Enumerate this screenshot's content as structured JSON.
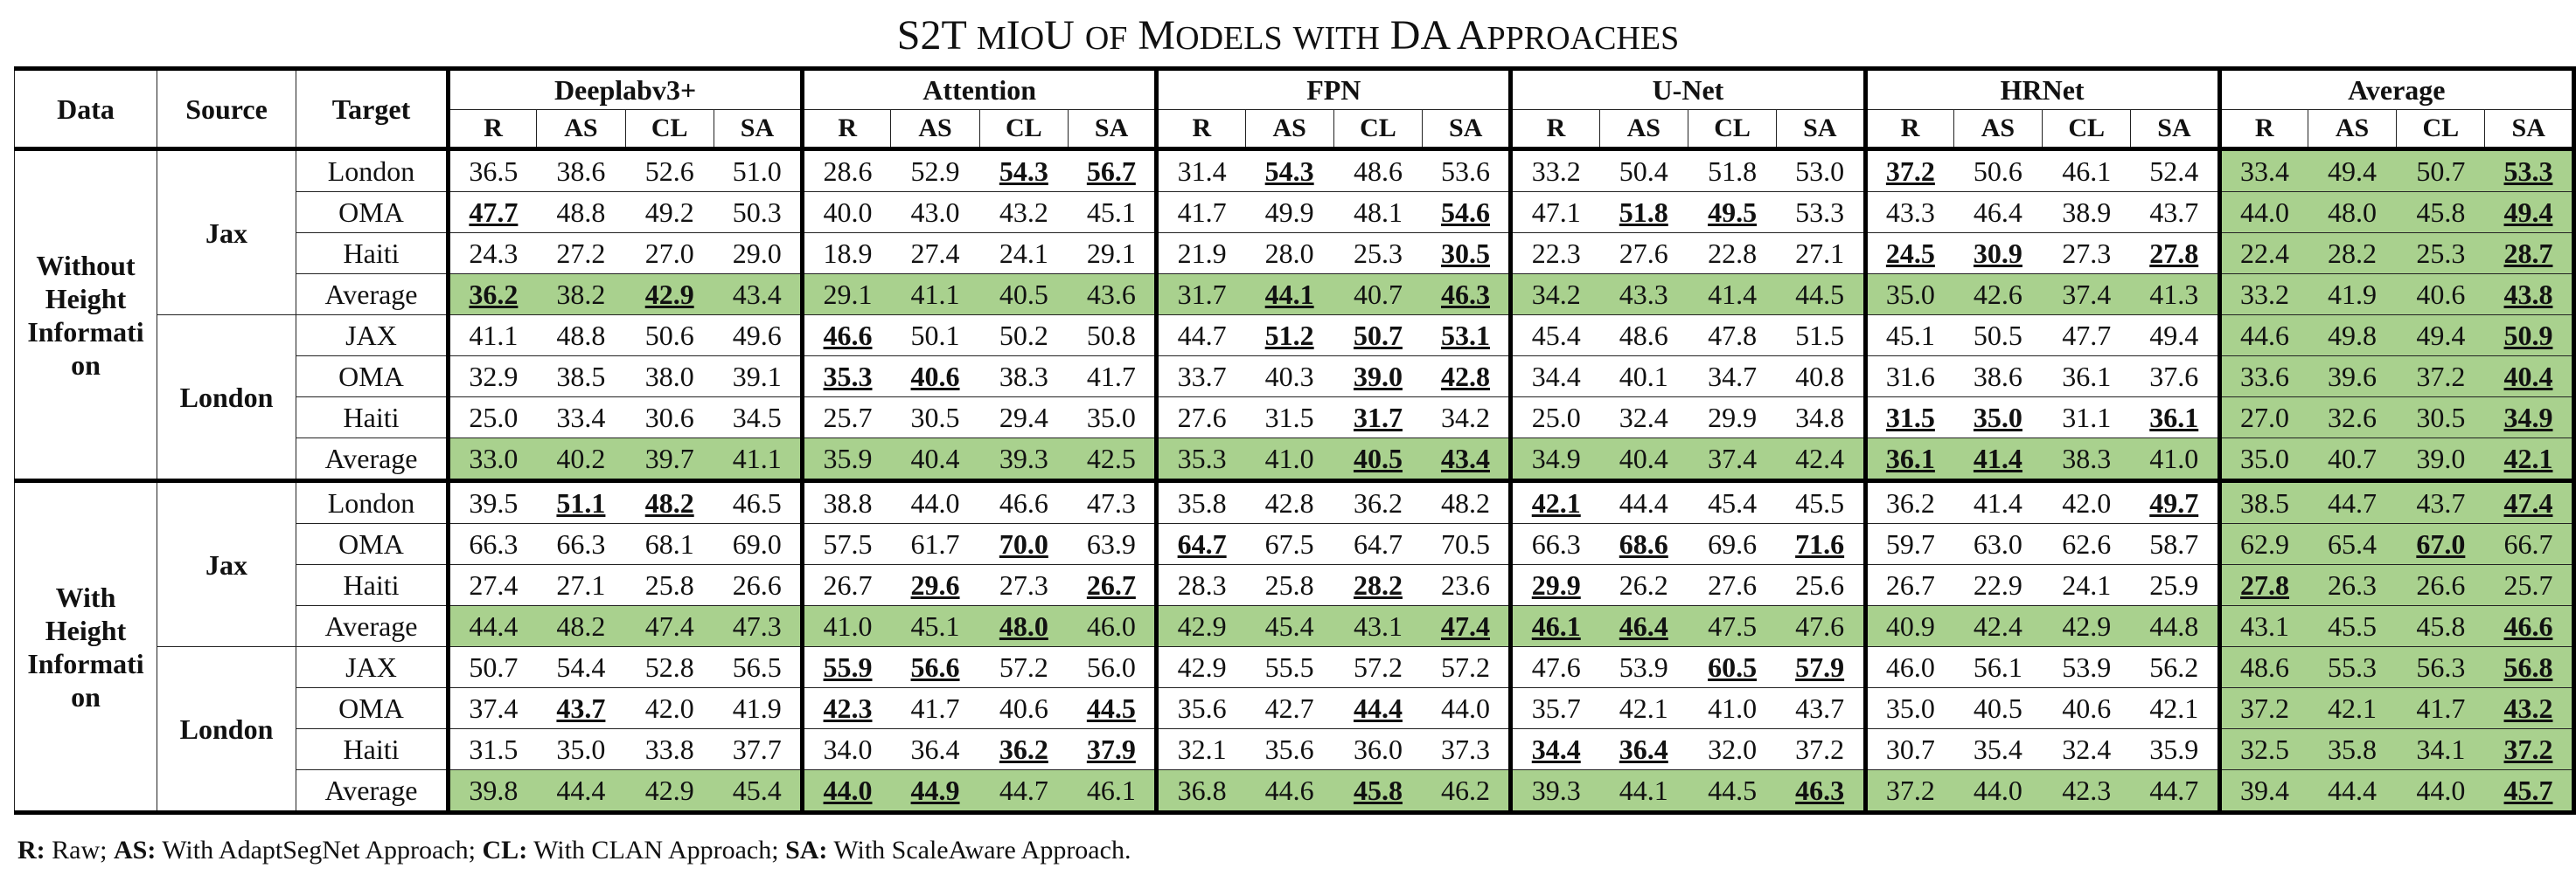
{
  "title": {
    "main_a": "S2T ",
    "sc_a": "M",
    "sc_a_small": "IO",
    "main_b": "U ",
    "rest": "of Models with DA Approaches"
  },
  "title_text": "S2T mIoU of Models with DA Approaches",
  "headers": {
    "data": "Data",
    "source": "Source",
    "target": "Target",
    "groups": [
      "Deeplabv3+",
      "Attention",
      "FPN",
      "U-Net",
      "HRNet",
      "Average"
    ],
    "sub": [
      "R",
      "AS",
      "CL",
      "SA"
    ]
  },
  "sections": [
    {
      "label": "Without Height Informati on",
      "sources": [
        {
          "name": "Jax",
          "rows": [
            {
              "target": "London",
              "vals": [
                "36.5",
                "38.6",
                "52.6",
                "51.0",
                "28.6",
                "52.9",
                "54.3",
                "56.7",
                "31.4",
                "54.3",
                "48.6",
                "53.6",
                "33.2",
                "50.4",
                "51.8",
                "53.0",
                "37.2",
                "50.6",
                "46.1",
                "52.4",
                "33.4",
                "49.4",
                "50.7",
                "53.3"
              ],
              "bold": [
                6,
                7,
                9,
                16,
                23
              ]
            },
            {
              "target": "OMA",
              "vals": [
                "47.7",
                "48.8",
                "49.2",
                "50.3",
                "40.0",
                "43.0",
                "43.2",
                "45.1",
                "41.7",
                "49.9",
                "48.1",
                "54.6",
                "47.1",
                "51.8",
                "49.5",
                "53.3",
                "43.3",
                "46.4",
                "38.9",
                "43.7",
                "44.0",
                "48.0",
                "45.8",
                "49.4"
              ],
              "bold": [
                0,
                11,
                13,
                14,
                23
              ]
            },
            {
              "target": "Haiti",
              "vals": [
                "24.3",
                "27.2",
                "27.0",
                "29.0",
                "18.9",
                "27.4",
                "24.1",
                "29.1",
                "21.9",
                "28.0",
                "25.3",
                "30.5",
                "22.3",
                "27.6",
                "22.8",
                "27.1",
                "24.5",
                "30.9",
                "27.3",
                "27.8",
                "22.4",
                "28.2",
                "25.3",
                "28.7"
              ],
              "bold": [
                11,
                16,
                17,
                19,
                23
              ]
            },
            {
              "target": "Average",
              "avg": true,
              "vals": [
                "36.2",
                "38.2",
                "42.9",
                "43.4",
                "29.1",
                "41.1",
                "40.5",
                "43.6",
                "31.7",
                "44.1",
                "40.7",
                "46.3",
                "34.2",
                "43.3",
                "41.4",
                "44.5",
                "35.0",
                "42.6",
                "37.4",
                "41.3",
                "33.2",
                "41.9",
                "40.6",
                "43.8"
              ],
              "bold": [
                0,
                2,
                9,
                11,
                23
              ]
            }
          ]
        },
        {
          "name": "London",
          "rows": [
            {
              "target": "JAX",
              "vals": [
                "41.1",
                "48.8",
                "50.6",
                "49.6",
                "46.6",
                "50.1",
                "50.2",
                "50.8",
                "44.7",
                "51.2",
                "50.7",
                "53.1",
                "45.4",
                "48.6",
                "47.8",
                "51.5",
                "45.1",
                "50.5",
                "47.7",
                "49.4",
                "44.6",
                "49.8",
                "49.4",
                "50.9"
              ],
              "bold": [
                4,
                9,
                10,
                11,
                23
              ]
            },
            {
              "target": "OMA",
              "vals": [
                "32.9",
                "38.5",
                "38.0",
                "39.1",
                "35.3",
                "40.6",
                "38.3",
                "41.7",
                "33.7",
                "40.3",
                "39.0",
                "42.8",
                "34.4",
                "40.1",
                "34.7",
                "40.8",
                "31.6",
                "38.6",
                "36.1",
                "37.6",
                "33.6",
                "39.6",
                "37.2",
                "40.4"
              ],
              "bold": [
                4,
                5,
                10,
                11,
                23
              ]
            },
            {
              "target": "Haiti",
              "vals": [
                "25.0",
                "33.4",
                "30.6",
                "34.5",
                "25.7",
                "30.5",
                "29.4",
                "35.0",
                "27.6",
                "31.5",
                "31.7",
                "34.2",
                "25.0",
                "32.4",
                "29.9",
                "34.8",
                "31.5",
                "35.0",
                "31.1",
                "36.1",
                "27.0",
                "32.6",
                "30.5",
                "34.9"
              ],
              "bold": [
                10,
                16,
                17,
                19,
                23
              ]
            },
            {
              "target": "Average",
              "avg": true,
              "vals": [
                "33.0",
                "40.2",
                "39.7",
                "41.1",
                "35.9",
                "40.4",
                "39.3",
                "42.5",
                "35.3",
                "41.0",
                "40.5",
                "43.4",
                "34.9",
                "40.4",
                "37.4",
                "42.4",
                "36.1",
                "41.4",
                "38.3",
                "41.0",
                "35.0",
                "40.7",
                "39.0",
                "42.1"
              ],
              "bold": [
                10,
                11,
                16,
                17,
                23
              ]
            }
          ]
        }
      ]
    },
    {
      "label": "With Height Informati on",
      "sources": [
        {
          "name": "Jax",
          "rows": [
            {
              "target": "London",
              "vals": [
                "39.5",
                "51.1",
                "48.2",
                "46.5",
                "38.8",
                "44.0",
                "46.6",
                "47.3",
                "35.8",
                "42.8",
                "36.2",
                "48.2",
                "42.1",
                "44.4",
                "45.4",
                "45.5",
                "36.2",
                "41.4",
                "42.0",
                "49.7",
                "38.5",
                "44.7",
                "43.7",
                "47.4"
              ],
              "bold": [
                1,
                2,
                12,
                19,
                23
              ]
            },
            {
              "target": "OMA",
              "vals": [
                "66.3",
                "66.3",
                "68.1",
                "69.0",
                "57.5",
                "61.7",
                "70.0",
                "63.9",
                "64.7",
                "67.5",
                "64.7",
                "70.5",
                "66.3",
                "68.6",
                "69.6",
                "71.6",
                "59.7",
                "63.0",
                "62.6",
                "58.7",
                "62.9",
                "65.4",
                "67.0",
                "66.7"
              ],
              "bold": [
                6,
                8,
                13,
                15,
                22
              ]
            },
            {
              "target": "Haiti",
              "vals": [
                "27.4",
                "27.1",
                "25.8",
                "26.6",
                "26.7",
                "29.6",
                "27.3",
                "26.7",
                "28.3",
                "25.8",
                "28.2",
                "23.6",
                "29.9",
                "26.2",
                "27.6",
                "25.6",
                "26.7",
                "22.9",
                "24.1",
                "25.9",
                "27.8",
                "26.3",
                "26.6",
                "25.7"
              ],
              "bold": [
                5,
                7,
                10,
                12,
                20
              ]
            },
            {
              "target": "Average",
              "avg": true,
              "vals": [
                "44.4",
                "48.2",
                "47.4",
                "47.3",
                "41.0",
                "45.1",
                "48.0",
                "46.0",
                "42.9",
                "45.4",
                "43.1",
                "47.4",
                "46.1",
                "46.4",
                "47.5",
                "47.6",
                "40.9",
                "42.4",
                "42.9",
                "44.8",
                "43.1",
                "45.5",
                "45.8",
                "46.6"
              ],
              "bold": [
                6,
                11,
                12,
                13,
                23
              ]
            }
          ]
        },
        {
          "name": "London",
          "rows": [
            {
              "target": "JAX",
              "vals": [
                "50.7",
                "54.4",
                "52.8",
                "56.5",
                "55.9",
                "56.6",
                "57.2",
                "56.0",
                "42.9",
                "55.5",
                "57.2",
                "57.2",
                "47.6",
                "53.9",
                "60.5",
                "57.9",
                "46.0",
                "56.1",
                "53.9",
                "56.2",
                "48.6",
                "55.3",
                "56.3",
                "56.8"
              ],
              "bold": [
                4,
                5,
                14,
                15,
                23
              ]
            },
            {
              "target": "OMA",
              "vals": [
                "37.4",
                "43.7",
                "42.0",
                "41.9",
                "42.3",
                "41.7",
                "40.6",
                "44.5",
                "35.6",
                "42.7",
                "44.4",
                "44.0",
                "35.7",
                "42.1",
                "41.0",
                "43.7",
                "35.0",
                "40.5",
                "40.6",
                "42.1",
                "37.2",
                "42.1",
                "41.7",
                "43.2"
              ],
              "bold": [
                1,
                4,
                7,
                10,
                23
              ]
            },
            {
              "target": "Haiti",
              "vals": [
                "31.5",
                "35.0",
                "33.8",
                "37.7",
                "34.0",
                "36.4",
                "36.2",
                "37.9",
                "32.1",
                "35.6",
                "36.0",
                "37.3",
                "34.4",
                "36.4",
                "32.0",
                "37.2",
                "30.7",
                "35.4",
                "32.4",
                "35.9",
                "32.5",
                "35.8",
                "34.1",
                "37.2"
              ],
              "bold": [
                6,
                7,
                12,
                13,
                23
              ]
            },
            {
              "target": "Average",
              "avg": true,
              "vals": [
                "39.8",
                "44.4",
                "42.9",
                "45.4",
                "44.0",
                "44.9",
                "44.7",
                "46.1",
                "36.8",
                "44.6",
                "45.8",
                "46.2",
                "39.3",
                "44.1",
                "44.5",
                "46.3",
                "37.2",
                "44.0",
                "42.3",
                "44.7",
                "39.4",
                "44.4",
                "44.0",
                "45.7"
              ],
              "bold": [
                4,
                5,
                10,
                15,
                23
              ]
            }
          ]
        }
      ]
    }
  ],
  "footer": [
    {
      "key": "R:",
      "text": " Raw; "
    },
    {
      "key": "AS:",
      "text": " With AdaptSegNet Approach; "
    },
    {
      "key": "CL:",
      "text": " With CLAN  Approach; "
    },
    {
      "key": "SA:",
      "text": " With ScaleAware  Approach."
    }
  ],
  "colors": {
    "highlight": "#a9d18e",
    "border": "#000000"
  }
}
